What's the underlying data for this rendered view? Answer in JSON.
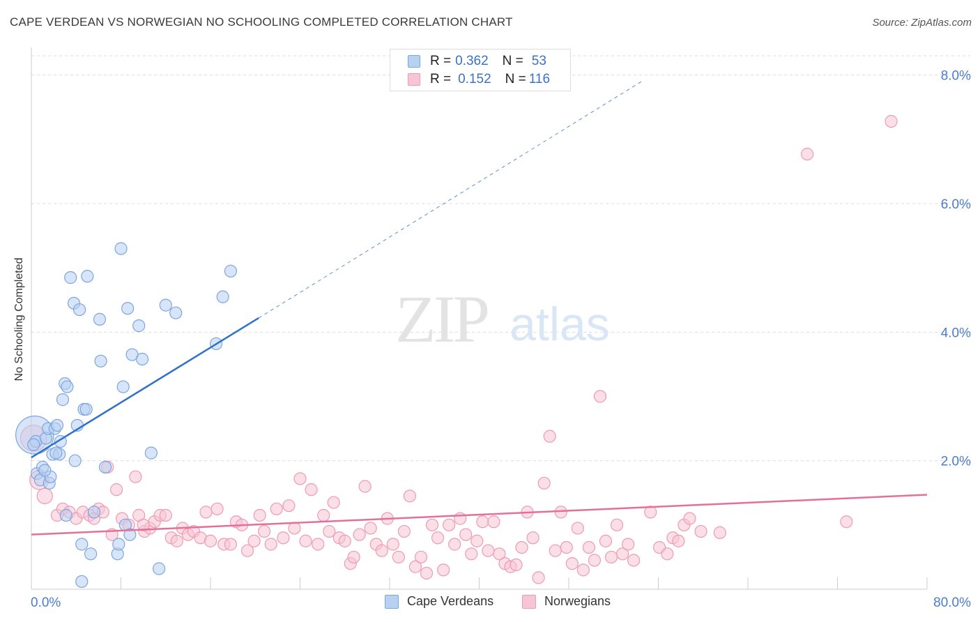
{
  "title": "CAPE VERDEAN VS NORWEGIAN NO SCHOOLING COMPLETED CORRELATION CHART",
  "source": "Source: ZipAtlas.com",
  "watermark": {
    "zip": "ZIP",
    "atlas": "atlas"
  },
  "colors": {
    "blue_fill": "#b8d0f2",
    "blue_stroke": "#7aa6e0",
    "blue_line": "#2f72c8",
    "pink_fill": "#f8c5d4",
    "pink_stroke": "#ee9ab4",
    "pink_line": "#e46f98",
    "tick_label": "#4a7cc9",
    "grid": "#dcdcdc"
  },
  "legend_top": [
    {
      "r_label": "R = ",
      "r_value": "0.362",
      "n_label": "N = ",
      "n_value": "53"
    },
    {
      "r_label": "R = ",
      "r_value": "0.152",
      "n_label": "N = ",
      "n_value": "116"
    }
  ],
  "chart_data": {
    "type": "scatter",
    "title": "CAPE VERDEAN VS NORWEGIAN NO SCHOOLING COMPLETED CORRELATION CHART",
    "xlabel": "",
    "ylabel": "No Schooling Completed",
    "xlim": [
      0,
      80
    ],
    "ylim": [
      0,
      8.3
    ],
    "x_tick_labels": [
      "0.0%",
      "80.0%"
    ],
    "y_ticks": [
      2,
      4,
      6,
      8
    ],
    "y_tick_labels": [
      "2.0%",
      "4.0%",
      "6.0%",
      "8.0%"
    ],
    "grid": true,
    "legend_position": "top-center and bottom",
    "series": [
      {
        "name": "Cape Verdeans",
        "R": 0.362,
        "N": 53,
        "trend": {
          "x0": 0,
          "y0": 2.05,
          "x1": 20.3,
          "y1": 4.22,
          "dash_to_x": 54.5,
          "dash_to_y": 7.9
        },
        "points": [
          [
            0.3,
            2.4,
            3.2
          ],
          [
            0.4,
            2.3,
            1
          ],
          [
            0.5,
            1.8,
            1
          ],
          [
            0.8,
            1.7,
            1
          ],
          [
            1.0,
            1.9,
            1
          ],
          [
            1.3,
            2.35,
            1
          ],
          [
            1.5,
            2.5,
            1
          ],
          [
            1.6,
            1.65,
            1
          ],
          [
            1.7,
            1.75,
            1
          ],
          [
            1.9,
            2.1,
            1
          ],
          [
            2.1,
            2.5,
            1
          ],
          [
            2.3,
            2.55,
            1
          ],
          [
            2.5,
            2.1,
            1
          ],
          [
            2.6,
            2.3,
            1
          ],
          [
            2.8,
            2.95,
            1
          ],
          [
            3.0,
            3.2,
            1
          ],
          [
            3.2,
            3.15,
            1
          ],
          [
            3.1,
            1.15,
            1
          ],
          [
            3.5,
            4.85,
            1
          ],
          [
            3.8,
            4.45,
            1
          ],
          [
            3.9,
            2.0,
            1
          ],
          [
            4.1,
            2.55,
            1
          ],
          [
            4.3,
            4.35,
            1
          ],
          [
            4.5,
            0.7,
            1
          ],
          [
            4.7,
            2.8,
            1
          ],
          [
            4.9,
            2.8,
            1
          ],
          [
            5.0,
            4.87,
            1
          ],
          [
            5.3,
            0.55,
            1
          ],
          [
            6.1,
            4.2,
            1
          ],
          [
            6.2,
            3.55,
            1
          ],
          [
            6.6,
            1.9,
            1
          ],
          [
            7.7,
            0.55,
            1
          ],
          [
            7.8,
            0.7,
            1
          ],
          [
            8.0,
            5.3,
            1
          ],
          [
            8.2,
            3.15,
            1
          ],
          [
            8.4,
            1.0,
            1
          ],
          [
            8.6,
            4.37,
            1
          ],
          [
            8.8,
            0.85,
            1
          ],
          [
            9.0,
            3.65,
            1
          ],
          [
            9.6,
            4.1,
            1
          ],
          [
            9.9,
            3.58,
            1
          ],
          [
            10.7,
            2.12,
            1
          ],
          [
            11.4,
            0.32,
            1
          ],
          [
            12.0,
            4.42,
            1
          ],
          [
            12.9,
            4.3,
            1
          ],
          [
            4.5,
            0.12,
            1
          ],
          [
            16.5,
            3.82,
            1
          ],
          [
            17.1,
            4.55,
            1
          ],
          [
            17.8,
            4.95,
            1
          ],
          [
            0.2,
            2.25,
            1
          ],
          [
            1.2,
            1.85,
            1
          ],
          [
            2.2,
            2.12,
            1
          ],
          [
            5.6,
            1.2,
            1
          ]
        ]
      },
      {
        "name": "Norwegians",
        "R": 0.152,
        "N": 116,
        "trend": {
          "x0": 0,
          "y0": 0.85,
          "x1": 80,
          "y1": 1.47
        },
        "points": [
          [
            0.2,
            2.35,
            2.2
          ],
          [
            0.7,
            1.7,
            1.6
          ],
          [
            1.2,
            1.45,
            1.3
          ],
          [
            2.3,
            1.15,
            1
          ],
          [
            2.8,
            1.25,
            1
          ],
          [
            3.4,
            1.2,
            1
          ],
          [
            4.0,
            1.1,
            1
          ],
          [
            4.6,
            1.2,
            1
          ],
          [
            5.2,
            1.15,
            1
          ],
          [
            5.6,
            1.1,
            1
          ],
          [
            6.0,
            1.25,
            1
          ],
          [
            6.4,
            1.2,
            1
          ],
          [
            6.8,
            1.9,
            1
          ],
          [
            7.2,
            0.85,
            1
          ],
          [
            7.6,
            1.55,
            1
          ],
          [
            8.1,
            1.1,
            1
          ],
          [
            8.7,
            1.0,
            1
          ],
          [
            9.3,
            1.75,
            1
          ],
          [
            9.6,
            1.15,
            1
          ],
          [
            10.1,
            0.9,
            1
          ],
          [
            10.6,
            0.95,
            1
          ],
          [
            11.0,
            1.05,
            1
          ],
          [
            11.5,
            1.15,
            1
          ],
          [
            12.0,
            1.15,
            1
          ],
          [
            12.5,
            0.8,
            1
          ],
          [
            13.0,
            0.75,
            1
          ],
          [
            13.5,
            0.95,
            1
          ],
          [
            14.0,
            0.85,
            1
          ],
          [
            14.5,
            0.9,
            1
          ],
          [
            15.1,
            0.8,
            1
          ],
          [
            15.6,
            1.2,
            1
          ],
          [
            16.0,
            0.75,
            1
          ],
          [
            16.6,
            1.25,
            1
          ],
          [
            17.2,
            0.7,
            1
          ],
          [
            17.8,
            0.7,
            1
          ],
          [
            18.3,
            1.05,
            1
          ],
          [
            18.8,
            1.0,
            1
          ],
          [
            19.3,
            0.6,
            1
          ],
          [
            19.9,
            0.75,
            1
          ],
          [
            20.4,
            1.15,
            1
          ],
          [
            20.8,
            0.9,
            1
          ],
          [
            21.4,
            0.7,
            1
          ],
          [
            21.9,
            1.25,
            1
          ],
          [
            22.5,
            0.8,
            1
          ],
          [
            23.0,
            1.3,
            1
          ],
          [
            23.5,
            0.95,
            1
          ],
          [
            24.0,
            1.72,
            1
          ],
          [
            24.5,
            0.75,
            1
          ],
          [
            25.0,
            1.55,
            1
          ],
          [
            25.6,
            0.7,
            1
          ],
          [
            26.1,
            1.15,
            1
          ],
          [
            26.6,
            0.9,
            1
          ],
          [
            27.0,
            1.35,
            1
          ],
          [
            27.5,
            0.8,
            1
          ],
          [
            28.0,
            0.75,
            1
          ],
          [
            28.5,
            0.4,
            1
          ],
          [
            28.8,
            0.5,
            1
          ],
          [
            29.3,
            0.85,
            1
          ],
          [
            29.8,
            1.6,
            1
          ],
          [
            30.3,
            0.95,
            1
          ],
          [
            30.8,
            0.7,
            1
          ],
          [
            31.3,
            0.6,
            1
          ],
          [
            31.8,
            1.1,
            1
          ],
          [
            32.3,
            0.7,
            1
          ],
          [
            32.8,
            0.5,
            1
          ],
          [
            33.3,
            0.9,
            1
          ],
          [
            33.8,
            1.45,
            1
          ],
          [
            34.3,
            0.35,
            1
          ],
          [
            34.8,
            0.5,
            1
          ],
          [
            35.3,
            0.25,
            1
          ],
          [
            35.8,
            1.0,
            1
          ],
          [
            36.3,
            0.8,
            1
          ],
          [
            36.8,
            0.3,
            1
          ],
          [
            37.3,
            1.0,
            1
          ],
          [
            37.8,
            0.7,
            1
          ],
          [
            38.3,
            1.1,
            1
          ],
          [
            38.8,
            0.85,
            1
          ],
          [
            39.3,
            0.55,
            1
          ],
          [
            39.8,
            0.75,
            1
          ],
          [
            40.3,
            1.05,
            1
          ],
          [
            40.8,
            0.6,
            1
          ],
          [
            41.3,
            1.05,
            1
          ],
          [
            41.8,
            0.55,
            1
          ],
          [
            42.3,
            0.4,
            1
          ],
          [
            42.8,
            0.35,
            1
          ],
          [
            43.3,
            0.38,
            1
          ],
          [
            43.8,
            0.65,
            1
          ],
          [
            44.3,
            1.2,
            1
          ],
          [
            44.8,
            0.8,
            1
          ],
          [
            45.3,
            0.18,
            1
          ],
          [
            45.8,
            1.65,
            1
          ],
          [
            46.3,
            2.38,
            1
          ],
          [
            46.8,
            0.6,
            1
          ],
          [
            47.3,
            1.2,
            1
          ],
          [
            47.8,
            0.65,
            1
          ],
          [
            48.3,
            0.4,
            1
          ],
          [
            48.8,
            0.95,
            1
          ],
          [
            49.3,
            0.3,
            1
          ],
          [
            49.8,
            0.65,
            1
          ],
          [
            50.3,
            0.45,
            1
          ],
          [
            50.8,
            3.0,
            1
          ],
          [
            51.3,
            0.75,
            1
          ],
          [
            51.8,
            0.5,
            1
          ],
          [
            52.3,
            1.0,
            1
          ],
          [
            52.8,
            0.55,
            1
          ],
          [
            53.3,
            0.7,
            1
          ],
          [
            53.8,
            0.45,
            1
          ],
          [
            55.3,
            1.2,
            1
          ],
          [
            56.1,
            0.65,
            1
          ],
          [
            56.8,
            0.55,
            1
          ],
          [
            57.3,
            0.8,
            1
          ],
          [
            57.8,
            0.75,
            1
          ],
          [
            58.3,
            1.0,
            1
          ],
          [
            58.8,
            1.1,
            1
          ],
          [
            59.8,
            0.9,
            1
          ],
          [
            61.5,
            0.88,
            1
          ],
          [
            69.3,
            6.77,
            1
          ],
          [
            72.8,
            1.05,
            1
          ],
          [
            76.8,
            7.28,
            1
          ],
          [
            10.0,
            1.0,
            1
          ]
        ]
      }
    ]
  }
}
